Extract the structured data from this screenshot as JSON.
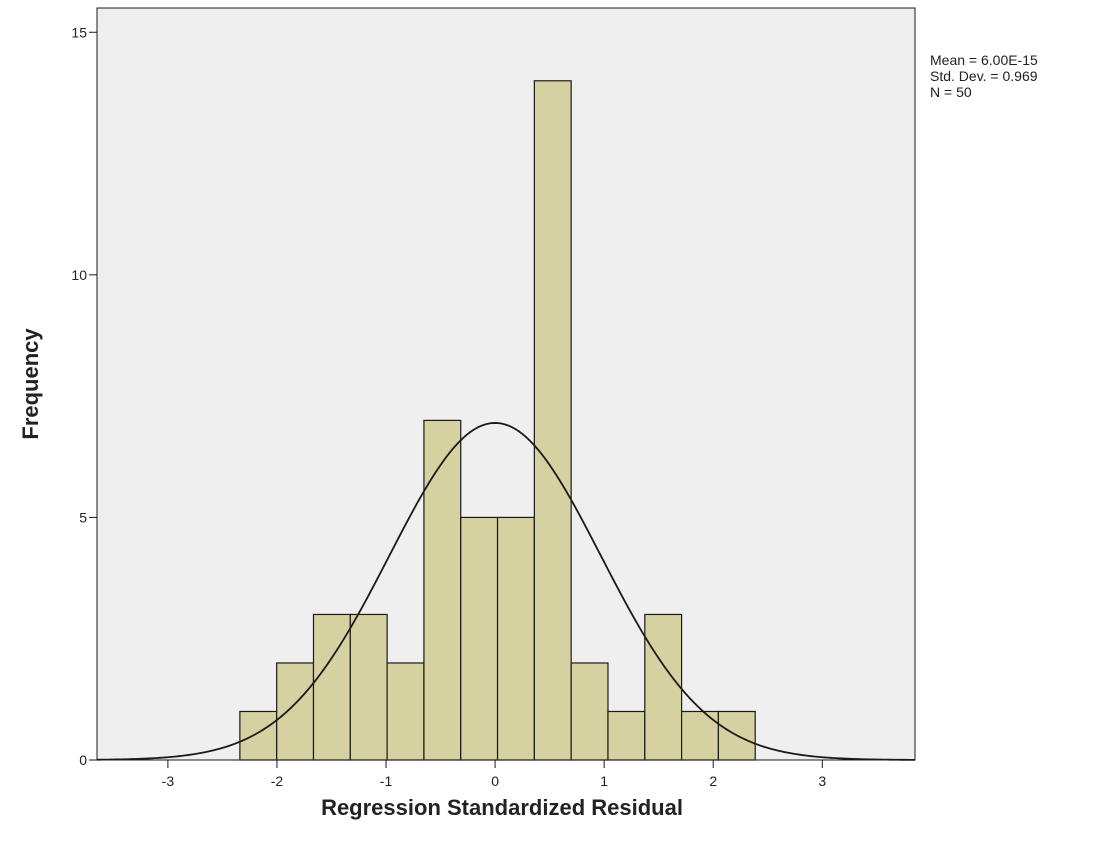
{
  "chart_data": {
    "type": "bar",
    "title": "",
    "xlabel": "Regression Standardized Residual",
    "ylabel": "Frequency",
    "xlim": [
      -3.65,
      3.85
    ],
    "ylim": [
      0,
      15.5
    ],
    "x_ticks": [
      -3,
      -2,
      -1,
      0,
      1,
      2,
      3
    ],
    "y_ticks": [
      0,
      5,
      10,
      15
    ],
    "bin_width": 0.3375,
    "bins": [
      {
        "start": -2.34,
        "count": 1
      },
      {
        "start": -2.0025,
        "count": 2
      },
      {
        "start": -1.665,
        "count": 3
      },
      {
        "start": -1.3275,
        "count": 3
      },
      {
        "start": -0.99,
        "count": 2
      },
      {
        "start": -0.6525,
        "count": 7
      },
      {
        "start": -0.315,
        "count": 5
      },
      {
        "start": 0.0225,
        "count": 5
      },
      {
        "start": 0.36,
        "count": 14
      },
      {
        "start": 0.6975,
        "count": 2
      },
      {
        "start": 1.035,
        "count": 1
      },
      {
        "start": 1.3725,
        "count": 3
      },
      {
        "start": 1.71,
        "count": 1
      },
      {
        "start": 2.0475,
        "count": 1
      }
    ],
    "normal_curve": {
      "mean": 0.0,
      "std": 0.969,
      "n": 50
    },
    "stats": {
      "mean_label": "Mean = 6.00E-15",
      "std_label": "Std. Dev. = 0.969",
      "n_label": "N = 50"
    },
    "colors": {
      "plot_background": "#efefef",
      "bar_fill": "#d6d1a1",
      "bar_stroke": "#1a1a1a",
      "curve": "#1a1a1a"
    },
    "grid": false,
    "legend": "none"
  }
}
